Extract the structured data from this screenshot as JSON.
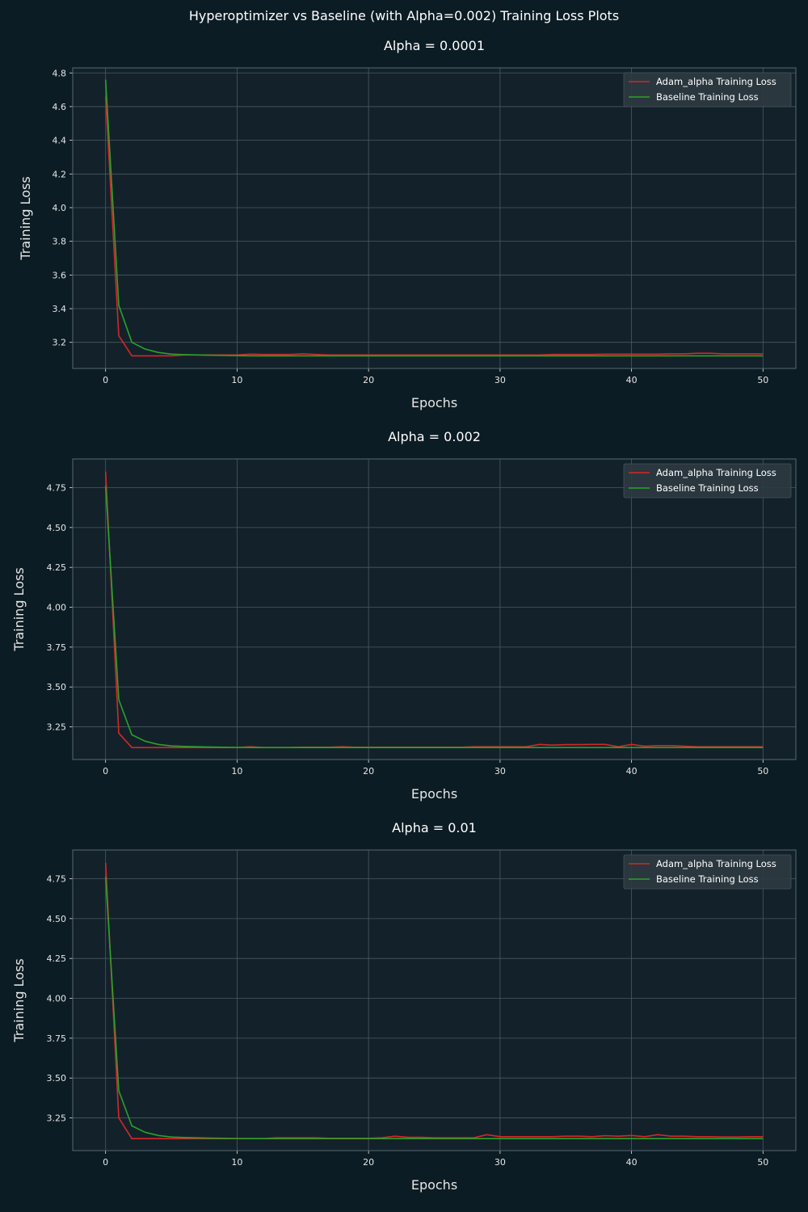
{
  "suptitle": "Hyperoptimizer vs Baseline (with Alpha=0.002) Training Loss Plots",
  "colors": {
    "figure_bg": "#0c1c24",
    "axes_bg": "#13222a",
    "grid": "#4a5a62",
    "spine": "#566870",
    "text": "#ffffff",
    "tick_text": "#e6e6e6",
    "adam": "#d62728",
    "baseline": "#2ca02c",
    "legend_bg": "#2d3a40"
  },
  "chart_data": [
    {
      "type": "line",
      "title": "Alpha = 0.0001",
      "xlabel": "Epochs",
      "ylabel": "Training Loss",
      "xlim": [
        -2.5,
        52.5
      ],
      "ylim": [
        3.045,
        4.83
      ],
      "xticks": [
        0,
        10,
        20,
        30,
        40,
        50
      ],
      "yticks": [
        3.2,
        3.4,
        3.6,
        3.8,
        4.0,
        4.2,
        4.4,
        4.6,
        4.8
      ],
      "ytick_labels": [
        "3.2",
        "3.4",
        "3.6",
        "3.8",
        "4.0",
        "4.2",
        "4.4",
        "4.6",
        "4.8"
      ],
      "grid": true,
      "legend": "top-right",
      "x": [
        0,
        1,
        2,
        3,
        4,
        5,
        6,
        7,
        8,
        9,
        10,
        11,
        12,
        13,
        14,
        15,
        16,
        17,
        18,
        19,
        20,
        21,
        22,
        23,
        24,
        25,
        26,
        27,
        28,
        29,
        30,
        31,
        32,
        33,
        34,
        35,
        36,
        37,
        38,
        39,
        40,
        41,
        42,
        43,
        44,
        45,
        46,
        47,
        48,
        49,
        50
      ],
      "series": [
        {
          "name": "Adam_alpha Training Loss",
          "color": "#d62728",
          "values": [
            4.66,
            3.24,
            3.12,
            3.12,
            3.12,
            3.12,
            3.125,
            3.125,
            3.125,
            3.125,
            3.125,
            3.13,
            3.128,
            3.128,
            3.128,
            3.132,
            3.128,
            3.125,
            3.125,
            3.125,
            3.125,
            3.125,
            3.125,
            3.125,
            3.125,
            3.125,
            3.125,
            3.125,
            3.125,
            3.125,
            3.125,
            3.125,
            3.125,
            3.125,
            3.128,
            3.128,
            3.128,
            3.128,
            3.13,
            3.13,
            3.13,
            3.13,
            3.13,
            3.132,
            3.132,
            3.135,
            3.135,
            3.132,
            3.132,
            3.132,
            3.132
          ]
        },
        {
          "name": "Baseline Training Loss",
          "color": "#2ca02c",
          "values": [
            4.76,
            3.42,
            3.2,
            3.16,
            3.14,
            3.13,
            3.127,
            3.125,
            3.123,
            3.122,
            3.121,
            3.12,
            3.12,
            3.12,
            3.12,
            3.12,
            3.12,
            3.12,
            3.12,
            3.12,
            3.12,
            3.12,
            3.12,
            3.12,
            3.12,
            3.12,
            3.12,
            3.12,
            3.12,
            3.12,
            3.12,
            3.12,
            3.12,
            3.12,
            3.12,
            3.12,
            3.12,
            3.12,
            3.12,
            3.12,
            3.12,
            3.12,
            3.12,
            3.12,
            3.12,
            3.12,
            3.12,
            3.12,
            3.12,
            3.12,
            3.12
          ]
        }
      ]
    },
    {
      "type": "line",
      "title": "Alpha = 0.002",
      "xlabel": "Epochs",
      "ylabel": "Training Loss",
      "xlim": [
        -2.5,
        52.5
      ],
      "ylim": [
        3.045,
        4.93
      ],
      "xticks": [
        0,
        10,
        20,
        30,
        40,
        50
      ],
      "yticks": [
        3.25,
        3.5,
        3.75,
        4.0,
        4.25,
        4.5,
        4.75
      ],
      "ytick_labels": [
        "3.25",
        "3.50",
        "3.75",
        "4.00",
        "4.25",
        "4.50",
        "4.75"
      ],
      "grid": true,
      "legend": "top-right",
      "x": [
        0,
        1,
        2,
        3,
        4,
        5,
        6,
        7,
        8,
        9,
        10,
        11,
        12,
        13,
        14,
        15,
        16,
        17,
        18,
        19,
        20,
        21,
        22,
        23,
        24,
        25,
        26,
        27,
        28,
        29,
        30,
        31,
        32,
        33,
        34,
        35,
        36,
        37,
        38,
        39,
        40,
        41,
        42,
        43,
        44,
        45,
        46,
        47,
        48,
        49,
        50
      ],
      "series": [
        {
          "name": "Adam_alpha Training Loss",
          "color": "#d62728",
          "values": [
            4.85,
            3.21,
            3.12,
            3.12,
            3.12,
            3.12,
            3.12,
            3.12,
            3.12,
            3.12,
            3.12,
            3.125,
            3.12,
            3.12,
            3.12,
            3.122,
            3.122,
            3.122,
            3.125,
            3.122,
            3.122,
            3.122,
            3.122,
            3.122,
            3.122,
            3.122,
            3.122,
            3.122,
            3.125,
            3.125,
            3.125,
            3.125,
            3.125,
            3.14,
            3.135,
            3.138,
            3.138,
            3.14,
            3.14,
            3.125,
            3.14,
            3.128,
            3.132,
            3.132,
            3.128,
            3.125,
            3.125,
            3.125,
            3.125,
            3.125,
            3.125
          ]
        },
        {
          "name": "Baseline Training Loss",
          "color": "#2ca02c",
          "values": [
            4.76,
            3.42,
            3.2,
            3.16,
            3.14,
            3.13,
            3.127,
            3.125,
            3.123,
            3.122,
            3.121,
            3.12,
            3.12,
            3.12,
            3.12,
            3.12,
            3.12,
            3.12,
            3.12,
            3.12,
            3.12,
            3.12,
            3.12,
            3.12,
            3.12,
            3.12,
            3.12,
            3.12,
            3.12,
            3.12,
            3.12,
            3.12,
            3.12,
            3.12,
            3.12,
            3.12,
            3.12,
            3.12,
            3.12,
            3.12,
            3.12,
            3.12,
            3.12,
            3.12,
            3.12,
            3.12,
            3.12,
            3.12,
            3.12,
            3.12,
            3.12
          ]
        }
      ]
    },
    {
      "type": "line",
      "title": "Alpha = 0.01",
      "xlabel": "Epochs",
      "ylabel": "Training Loss",
      "xlim": [
        -2.5,
        52.5
      ],
      "ylim": [
        3.045,
        4.93
      ],
      "xticks": [
        0,
        10,
        20,
        30,
        40,
        50
      ],
      "yticks": [
        3.25,
        3.5,
        3.75,
        4.0,
        4.25,
        4.5,
        4.75
      ],
      "ytick_labels": [
        "3.25",
        "3.50",
        "3.75",
        "4.00",
        "4.25",
        "4.50",
        "4.75"
      ],
      "grid": true,
      "legend": "top-right",
      "x": [
        0,
        1,
        2,
        3,
        4,
        5,
        6,
        7,
        8,
        9,
        10,
        11,
        12,
        13,
        14,
        15,
        16,
        17,
        18,
        19,
        20,
        21,
        22,
        23,
        24,
        25,
        26,
        27,
        28,
        29,
        30,
        31,
        32,
        33,
        34,
        35,
        36,
        37,
        38,
        39,
        40,
        41,
        42,
        43,
        44,
        45,
        46,
        47,
        48,
        49,
        50
      ],
      "series": [
        {
          "name": "Adam_alpha Training Loss",
          "color": "#d62728",
          "values": [
            4.85,
            3.25,
            3.12,
            3.12,
            3.12,
            3.12,
            3.12,
            3.12,
            3.12,
            3.12,
            3.12,
            3.12,
            3.12,
            3.125,
            3.125,
            3.125,
            3.125,
            3.122,
            3.122,
            3.122,
            3.122,
            3.125,
            3.135,
            3.128,
            3.128,
            3.125,
            3.125,
            3.125,
            3.125,
            3.145,
            3.132,
            3.132,
            3.132,
            3.132,
            3.132,
            3.135,
            3.135,
            3.132,
            3.138,
            3.135,
            3.14,
            3.132,
            3.145,
            3.135,
            3.135,
            3.132,
            3.132,
            3.13,
            3.13,
            3.132,
            3.132
          ]
        },
        {
          "name": "Baseline Training Loss",
          "color": "#2ca02c",
          "values": [
            4.76,
            3.42,
            3.2,
            3.16,
            3.14,
            3.13,
            3.127,
            3.125,
            3.123,
            3.122,
            3.121,
            3.12,
            3.12,
            3.12,
            3.12,
            3.12,
            3.12,
            3.12,
            3.12,
            3.12,
            3.12,
            3.12,
            3.12,
            3.12,
            3.12,
            3.12,
            3.12,
            3.12,
            3.12,
            3.12,
            3.12,
            3.12,
            3.12,
            3.12,
            3.12,
            3.12,
            3.12,
            3.12,
            3.12,
            3.12,
            3.12,
            3.12,
            3.12,
            3.12,
            3.12,
            3.12,
            3.12,
            3.12,
            3.12,
            3.12,
            3.12
          ]
        }
      ]
    }
  ]
}
